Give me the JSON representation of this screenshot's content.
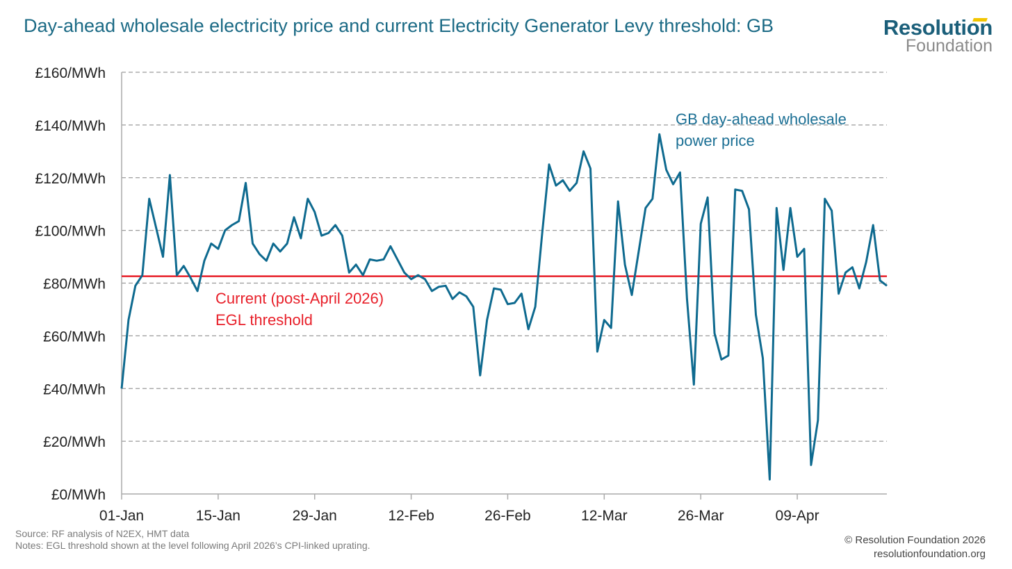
{
  "title": "Day-ahead wholesale electricity price and current Electricity Generator Levy threshold: GB",
  "logo": {
    "line1": "Resolution",
    "line2": "Foundation"
  },
  "colors": {
    "series": "#0e6a8f",
    "threshold": "#e8202a",
    "grid": "#9a9a9a",
    "title": "#1b6a85"
  },
  "chart_data": {
    "type": "line",
    "title": "Day-ahead wholesale electricity price and current Electricity Generator Levy threshold: GB",
    "xlabel": "",
    "ylabel": "",
    "ylim": [
      0,
      160
    ],
    "yticks": [
      0,
      20,
      40,
      60,
      80,
      100,
      120,
      140,
      160
    ],
    "ytick_labels": [
      "£0/MWh",
      "£20/MWh",
      "£40/MWh",
      "£60/MWh",
      "£80/MWh",
      "£100/MWh",
      "£120/MWh",
      "£140/MWh",
      "£160/MWh"
    ],
    "xtick_days": [
      0,
      14,
      28,
      42,
      56,
      70,
      84,
      98
    ],
    "xtick_labels": [
      "01-Jan",
      "15-Jan",
      "29-Jan",
      "12-Feb",
      "26-Feb",
      "12-Mar",
      "26-Mar",
      "09-Apr"
    ],
    "x_range_days": [
      0,
      111
    ],
    "grid": true,
    "series": [
      {
        "name": "GB day-ahead wholesale power price",
        "label_lines": [
          "GB day-ahead wholesale",
          "power price"
        ],
        "values": [
          40,
          66,
          79,
          83,
          112,
          101,
          90,
          121,
          83,
          86.5,
          82,
          77,
          88.5,
          95,
          93,
          100,
          102,
          103.5,
          118,
          95,
          91,
          88.5,
          95,
          92,
          95,
          105,
          97,
          112,
          107,
          98,
          99,
          102,
          98,
          84,
          87,
          83,
          89,
          88.5,
          89,
          94,
          89,
          84,
          81.5,
          83,
          81.5,
          77,
          78.6,
          79,
          74,
          76.5,
          75,
          71,
          45,
          66,
          78,
          77.5,
          72,
          72.5,
          76,
          62.5,
          71,
          99,
          125,
          117,
          119,
          115,
          118,
          130,
          123.5,
          54,
          66,
          63,
          111,
          87,
          75.5,
          92,
          108.5,
          112,
          136.5,
          123,
          117.5,
          122,
          74,
          41.5,
          102.5,
          112.5,
          61,
          51,
          52.5,
          115.5,
          115,
          108,
          68,
          51.5,
          5.5,
          108.5,
          85,
          108.5,
          90,
          93,
          11,
          28,
          112,
          107.5,
          76,
          84,
          86,
          78,
          88,
          102,
          81,
          79
        ]
      },
      {
        "name": "Current (post-April 2026) EGL threshold",
        "label_lines": [
          "Current (post-April 2026)",
          "EGL threshold"
        ],
        "value": 82.6
      }
    ]
  },
  "footer": {
    "source": "Source: RF analysis of N2EX, HMT data",
    "notes": "Notes: EGL threshold shown at the level following April 2026’s CPI-linked uprating.",
    "copyright": "© Resolution Foundation 2026",
    "website": "resolutionfoundation.org"
  }
}
